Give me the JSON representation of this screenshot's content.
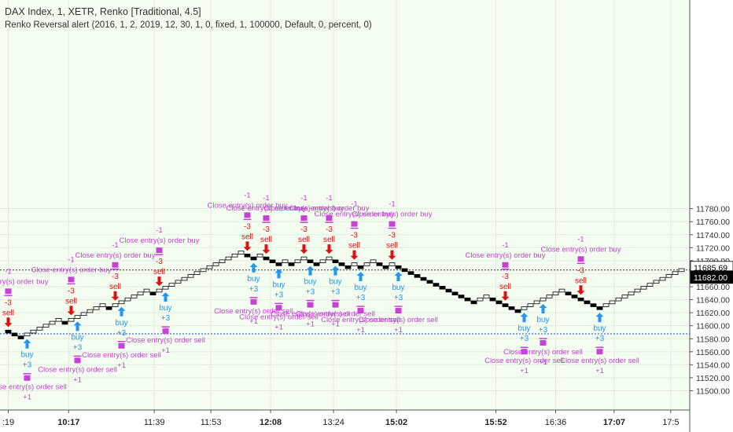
{
  "legend": {
    "title": "DAX Index, 1, XETR, Renko [Traditional, 4.5]",
    "strategy": "Renko Reversal alert (2016, 1, 2, 2019, 12, 30, 1, 0, fixed, 1, 100000, Default, 0, percent, 0)"
  },
  "colors": {
    "background": "#f3fdf0",
    "axis_bg": "#ffffff",
    "up_brick_fill": "#ffffff",
    "down_brick_fill": "#000000",
    "brick_stroke": "#000000",
    "buy": "#2196f3",
    "sell": "#e01010",
    "close_label": "#c93fd8",
    "last_price_line": "#333333",
    "entry_line": "#1a3fd9"
  },
  "chart_data": {
    "type": "renko",
    "symbol": "DAX Index",
    "brick_size": 4.5,
    "y_axis": {
      "ticks": [
        11500,
        11520,
        11540,
        11560,
        11580,
        11600,
        11620,
        11640,
        11660,
        11680,
        11700,
        11720,
        11740,
        11760,
        11780
      ],
      "tick_labels": [
        "11500.00",
        "11520.00",
        "11540.00",
        "11560.00",
        "11580.00",
        "11600.00",
        "11620.00",
        "11640.00",
        "11660.00",
        "11680.00",
        "11700.00",
        "11720.00",
        "11740.00",
        "11760.00",
        "11780.00"
      ],
      "range": [
        11482,
        11802
      ]
    },
    "x_axis": {
      "labels": [
        {
          "text": ":19",
          "brick": 0,
          "bold": false
        },
        {
          "text": "10:17",
          "brick": 9.6,
          "bold": true
        },
        {
          "text": "11:39",
          "brick": 23.2,
          "bold": false
        },
        {
          "text": "11:53",
          "brick": 32.2,
          "bold": false
        },
        {
          "text": "12:08",
          "brick": 41.7,
          "bold": true
        },
        {
          "text": "13:24",
          "brick": 51.7,
          "bold": false
        },
        {
          "text": "15:02",
          "brick": 61.7,
          "bold": true
        },
        {
          "text": "15:52",
          "brick": 77.5,
          "bold": true
        },
        {
          "text": "16:36",
          "brick": 87.0,
          "bold": false
        },
        {
          "text": "17:07",
          "brick": 96.3,
          "bold": true
        },
        {
          "text": "17:5",
          "brick": 105.3,
          "bold": false
        }
      ]
    },
    "price_labels": [
      {
        "text": "11685.69",
        "value": 11685.69,
        "style": "last"
      },
      {
        "text": "11682.00",
        "value": 11682.0,
        "style": "current"
      }
    ],
    "entry_line_value": 11587.5,
    "bricks": [
      11591,
      11586.5,
      11582,
      11586.5,
      11591,
      11595.5,
      11600,
      11604.5,
      11609,
      11604.5,
      11609,
      11613.5,
      11618,
      11622.5,
      11627,
      11631.5,
      11627,
      11631.5,
      11636,
      11640.5,
      11645,
      11649.5,
      11654,
      11649.5,
      11654,
      11658.5,
      11663,
      11667.5,
      11672,
      11676.5,
      11681,
      11685.5,
      11690,
      11694.5,
      11699,
      11703.5,
      11708,
      11712.5,
      11708,
      11703.5,
      11708,
      11703.5,
      11699,
      11694.5,
      11699,
      11694.5,
      11699,
      11703.5,
      11699,
      11694.5,
      11699,
      11703.5,
      11699,
      11694.5,
      11690,
      11694.5,
      11690,
      11694.5,
      11699,
      11694.5,
      11690,
      11694.5,
      11690,
      11685.5,
      11681,
      11676.5,
      11672,
      11667.5,
      11663,
      11658.5,
      11654,
      11649.5,
      11645,
      11640.5,
      11636,
      11640.5,
      11645,
      11640.5,
      11636,
      11631.5,
      11627,
      11622.5,
      11627,
      11631.5,
      11636,
      11640.5,
      11645,
      11649.5,
      11654,
      11649.5,
      11645,
      11640.5,
      11636,
      11631.5,
      11627,
      11631.5,
      11636,
      11640.5,
      11645,
      11649.5,
      11654,
      11658.5,
      11663,
      11667.5,
      11672,
      11676.5,
      11681,
      11685.5
    ],
    "signals": [
      {
        "brick": 0,
        "type": "sell",
        "label": "sell",
        "qty": "-3",
        "close_label": "Close entry(s) order buy",
        "close_qty": "-1"
      },
      {
        "brick": 3,
        "type": "buy",
        "label": "buy",
        "qty": "+3",
        "close_label": "Close entry(s) order sell",
        "close_qty": "+1"
      },
      {
        "brick": 10,
        "type": "sell",
        "label": "sell",
        "qty": "-3",
        "close_label": "Close entry(s) order buy",
        "close_qty": "-1"
      },
      {
        "brick": 11,
        "type": "buy",
        "label": "buy",
        "qty": "+3",
        "close_label": "Close entry(s) order sell",
        "close_qty": "+1"
      },
      {
        "brick": 17,
        "type": "sell",
        "label": "sell",
        "qty": "-3",
        "close_label": "Close entry(s) order buy",
        "close_qty": "-1"
      },
      {
        "brick": 18,
        "type": "buy",
        "label": "buy",
        "qty": "+3",
        "close_label": "Close entry(s) order sell",
        "close_qty": "+1"
      },
      {
        "brick": 24,
        "type": "sell",
        "label": "sell",
        "qty": "-3",
        "close_label": "Close entry(s) order buy",
        "close_qty": "-1"
      },
      {
        "brick": 25,
        "type": "buy",
        "label": "buy",
        "qty": "+3",
        "close_label": "Close entry(s) order sell",
        "close_qty": "+1"
      },
      {
        "brick": 38,
        "type": "sell",
        "label": "sell",
        "qty": "-3",
        "close_label": "Close entry(s) order buy",
        "close_qty": "-1"
      },
      {
        "brick": 39,
        "type": "buy",
        "label": "buy",
        "qty": "+3",
        "close_label": "Close entry(s) order sell",
        "close_qty": "+1"
      },
      {
        "brick": 41,
        "type": "sell",
        "label": "sell",
        "qty": "-3",
        "close_label": "Close entry(s) order buy",
        "close_qty": "-1"
      },
      {
        "brick": 43,
        "type": "buy",
        "label": "buy",
        "qty": "+3",
        "close_label": "Close entry(s) order sell",
        "close_qty": "+1"
      },
      {
        "brick": 47,
        "type": "sell",
        "label": "sell",
        "qty": "-3",
        "close_label": "Close entry(s) order buy",
        "close_qty": "-1"
      },
      {
        "brick": 48,
        "type": "buy",
        "label": "buy",
        "qty": "+3",
        "close_label": "Close entry(s) order sell",
        "close_qty": "+1"
      },
      {
        "brick": 51,
        "type": "sell",
        "label": "sell",
        "qty": "-3",
        "close_label": "Close entry(s) order buy",
        "close_qty": "-1"
      },
      {
        "brick": 52,
        "type": "buy",
        "label": "buy",
        "qty": "+3",
        "close_label": "Close entry(s) order sell",
        "close_qty": "+1"
      },
      {
        "brick": 55,
        "type": "sell",
        "label": "sell",
        "qty": "-3",
        "close_label": "Close entry(s) order buy",
        "close_qty": "-1"
      },
      {
        "brick": 56,
        "type": "buy",
        "label": "buy",
        "qty": "+3",
        "close_label": "Close entry(s) order sell",
        "close_qty": "+1"
      },
      {
        "brick": 61,
        "type": "sell",
        "label": "sell",
        "qty": "-3",
        "close_label": "Close entry(s) order buy",
        "close_qty": "-1"
      },
      {
        "brick": 62,
        "type": "buy",
        "label": "buy",
        "qty": "+3",
        "close_label": "Close entry(s) order sell",
        "close_qty": "+1"
      },
      {
        "brick": 79,
        "type": "sell",
        "label": "sell",
        "qty": "-3",
        "close_label": "Close entry(s) order buy",
        "close_qty": "-1"
      },
      {
        "brick": 82,
        "type": "buy",
        "label": "buy",
        "qty": "+3",
        "close_label": "Close entry(s) order sell",
        "close_qty": "+1"
      },
      {
        "brick": 85,
        "type": "buy",
        "label": "buy",
        "qty": "+3",
        "close_label": "Close entry(s) order sell",
        "close_qty": "+1"
      },
      {
        "brick": 91,
        "type": "sell",
        "label": "sell",
        "qty": "-3",
        "close_label": "Close entry(s) order buy",
        "close_qty": "-1"
      },
      {
        "brick": 94,
        "type": "buy",
        "label": "buy",
        "qty": "+3",
        "close_label": "Close entry(s) order sell",
        "close_qty": "+1"
      }
    ]
  }
}
